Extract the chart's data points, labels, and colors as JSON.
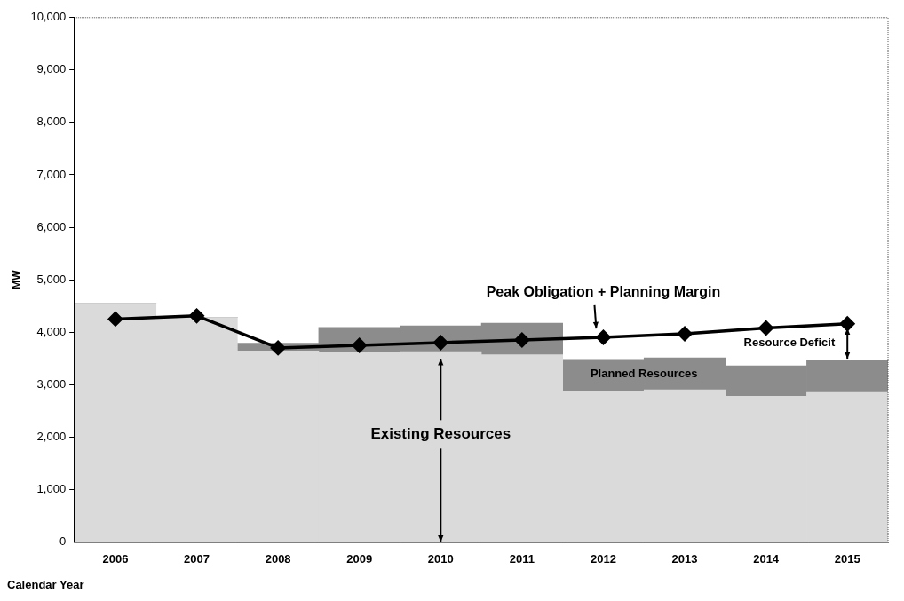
{
  "chart_data": {
    "type": "bar",
    "stacked": true,
    "xlabel": "Calendar Year",
    "ylabel": "MW",
    "categories": [
      "2006",
      "2007",
      "2008",
      "2009",
      "2010",
      "2011",
      "2012",
      "2013",
      "2014",
      "2015"
    ],
    "series": [
      {
        "color": "#dadada",
        "values": [
          4550,
          4280,
          3640,
          3620,
          3630,
          3570,
          2880,
          2900,
          2780,
          2850
        ]
      },
      {
        "color": "#8c8c8c",
        "values": [
          0,
          0,
          150,
          470,
          490,
          600,
          600,
          610,
          580,
          610
        ]
      },
      {
        "type": "line",
        "color": "#000000",
        "marker": "diamond",
        "values": [
          4250,
          4310,
          3700,
          3750,
          3800,
          3850,
          3900,
          3970,
          4080,
          4160
        ]
      }
    ],
    "ylim": [
      0,
      10000
    ],
    "yticks": [
      {
        "value": 0,
        "label": "0"
      },
      {
        "value": 1000,
        "label": "1,000"
      },
      {
        "value": 2000,
        "label": "2,000"
      },
      {
        "value": 3000,
        "label": "3,000"
      },
      {
        "value": 4000,
        "label": "4,000"
      },
      {
        "value": 5000,
        "label": "5,000"
      },
      {
        "value": 6000,
        "label": "6,000"
      },
      {
        "value": 7000,
        "label": "7,000"
      },
      {
        "value": 8000,
        "label": "8,000"
      },
      {
        "value": 9000,
        "label": "9,000"
      },
      {
        "value": 10000,
        "label": "10,000"
      }
    ],
    "grid": false,
    "legend": false,
    "annotations": [
      {
        "text": "Peak Obligation + Planning Margin",
        "x": "2012",
        "y": 3900
      },
      {
        "text": "Existing Resources",
        "x": "2010",
        "y": 3630
      },
      "Planned Resources",
      "Resource Deficit"
    ]
  }
}
